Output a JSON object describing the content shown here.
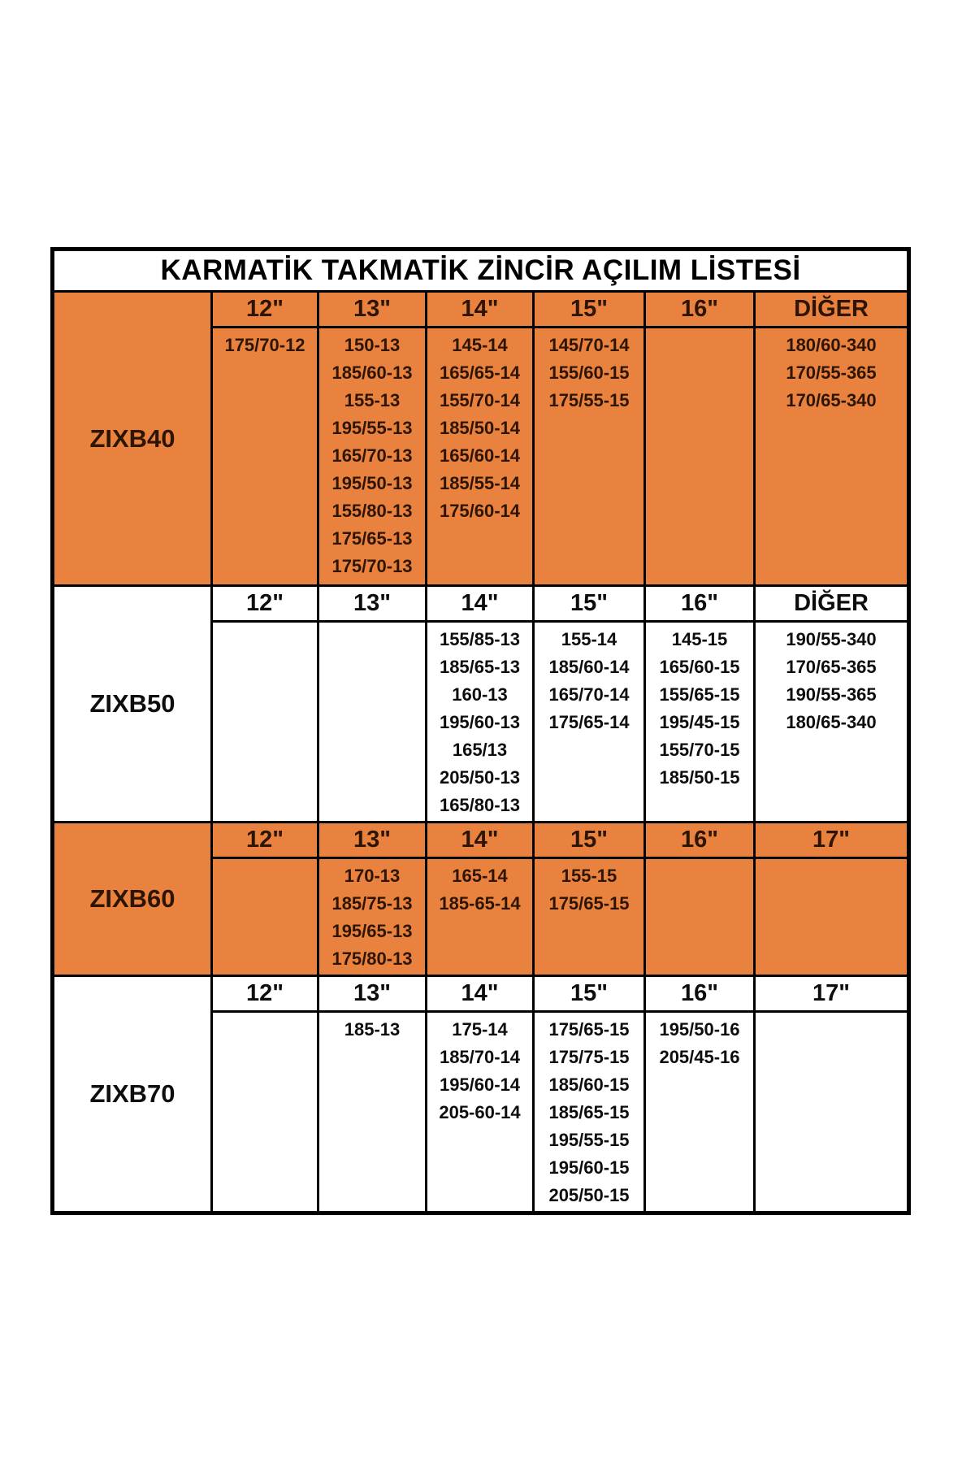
{
  "title": "KARMATİK TAKMATİK ZİNCİR AÇILIM LİSTESİ",
  "colors": {
    "section_orange": "#E8823E",
    "section_white": "#FFFFFF",
    "border": "#000000",
    "text_on_orange": "#2E1503",
    "text_on_white": "#0D0D0D"
  },
  "sections": [
    {
      "model": "ZIXB40",
      "theme": "orange",
      "headers": [
        "12\"",
        "13\"",
        "14\"",
        "15\"",
        "16\"",
        "DİĞER"
      ],
      "columns": [
        [
          "175/70-12"
        ],
        [
          "150-13",
          "185/60-13",
          "155-13",
          "195/55-13",
          "165/70-13",
          "195/50-13",
          "155/80-13",
          "175/65-13",
          "175/70-13"
        ],
        [
          "145-14",
          "165/65-14",
          "155/70-14",
          "185/50-14",
          "165/60-14",
          "185/55-14",
          "175/60-14"
        ],
        [
          "145/70-14",
          "155/60-15",
          "175/55-15"
        ],
        [],
        [
          "180/60-340",
          "170/55-365",
          "170/65-340"
        ]
      ]
    },
    {
      "model": "ZIXB50",
      "theme": "white",
      "headers": [
        "12\"",
        "13\"",
        "14\"",
        "15\"",
        "16\"",
        "DİĞER"
      ],
      "columns": [
        [],
        [],
        [
          "155/85-13",
          "185/65-13",
          "160-13",
          "195/60-13",
          "165/13",
          "205/50-13",
          "165/80-13"
        ],
        [
          "155-14",
          "185/60-14",
          "165/70-14",
          "175/65-14"
        ],
        [
          "145-15",
          "165/60-15",
          "155/65-15",
          "195/45-15",
          "155/70-15",
          "185/50-15"
        ],
        [
          "190/55-340",
          "170/65-365",
          "190/55-365",
          "180/65-340"
        ]
      ]
    },
    {
      "model": "ZIXB60",
      "theme": "orange",
      "headers": [
        "12\"",
        "13\"",
        "14\"",
        "15\"",
        "16\"",
        "17\""
      ],
      "columns": [
        [],
        [
          "170-13",
          "185/75-13",
          "195/65-13",
          "175/80-13"
        ],
        [
          "165-14",
          "185-65-14"
        ],
        [
          "155-15",
          "175/65-15"
        ],
        [],
        []
      ]
    },
    {
      "model": "ZIXB70",
      "theme": "white",
      "headers": [
        "12\"",
        "13\"",
        "14\"",
        "15\"",
        "16\"",
        "17\""
      ],
      "columns": [
        [],
        [
          "185-13"
        ],
        [
          "175-14",
          "185/70-14",
          "195/60-14",
          "205-60-14"
        ],
        [
          "175/65-15",
          "175/75-15",
          "185/60-15",
          "185/65-15",
          "195/55-15",
          "195/60-15",
          "205/50-15"
        ],
        [
          "195/50-16",
          "205/45-16"
        ],
        []
      ]
    }
  ]
}
